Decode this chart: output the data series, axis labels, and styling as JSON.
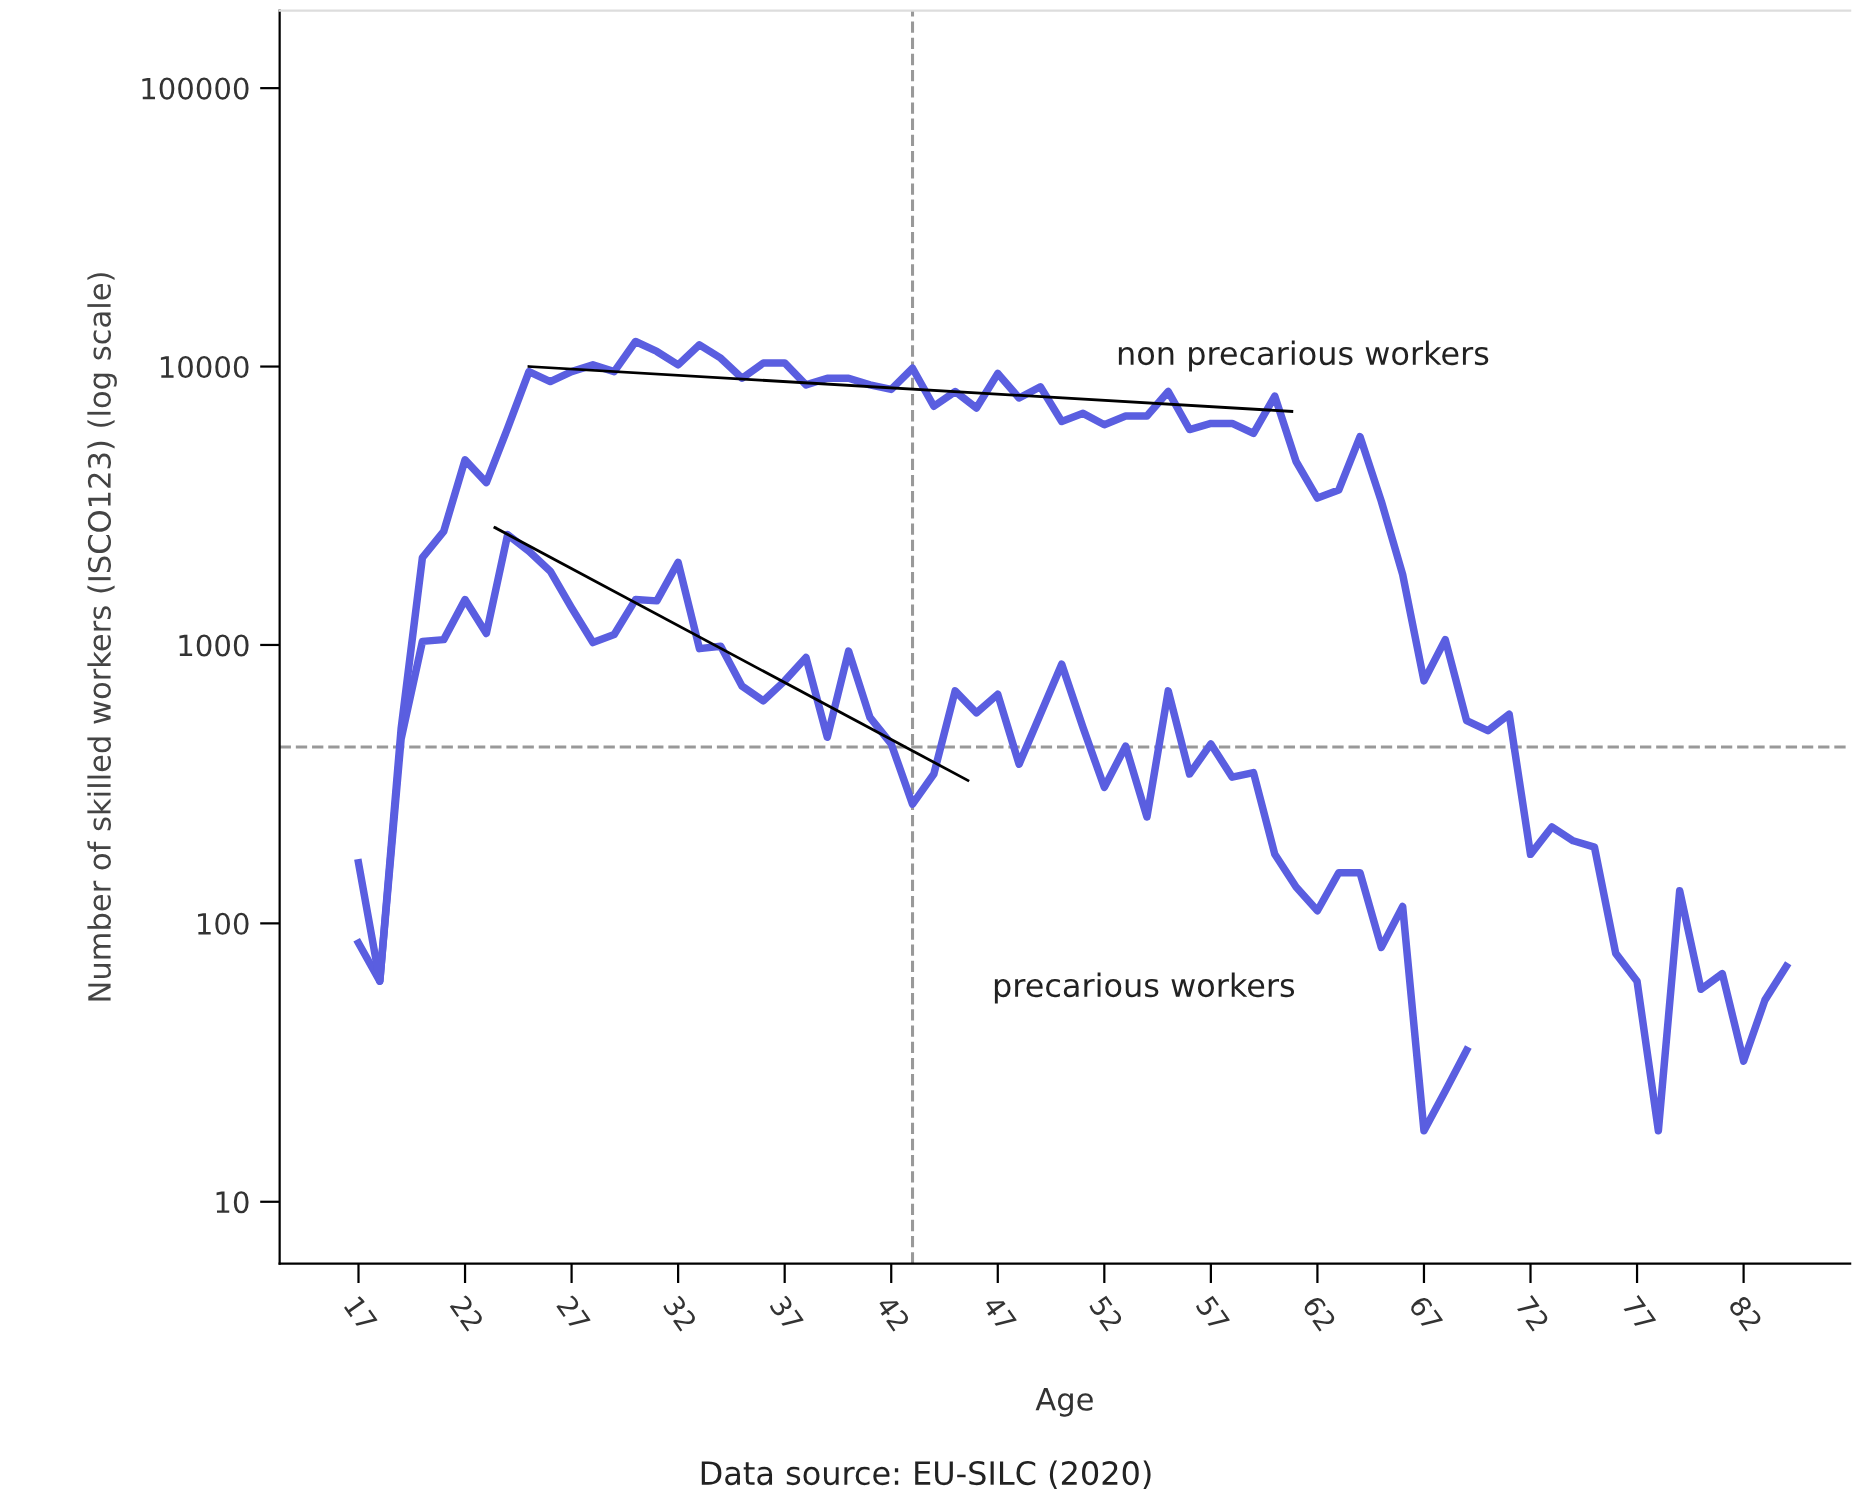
{
  "chart_data": {
    "type": "line",
    "xlabel": "Age",
    "ylabel": "Number of skilled workers (ISCO123) (log scale)",
    "log": "y",
    "xlim": [
      13.3,
      87
    ],
    "ylim": [
      6,
      190000
    ],
    "xticks": [
      17,
      22,
      27,
      32,
      37,
      42,
      47,
      52,
      57,
      62,
      67,
      72,
      77,
      82
    ],
    "yticks": [
      10,
      100,
      1000,
      10000,
      100000
    ],
    "grid": false,
    "legend": false,
    "marker": "none",
    "line_style": "solid",
    "series": [
      {
        "color": "#5a5ee0",
        "x": [
          17,
          18,
          19,
          20,
          21,
          22,
          23,
          24,
          25,
          26,
          27,
          28,
          29,
          30,
          31,
          32,
          33,
          34,
          35,
          36,
          37,
          38,
          39,
          40,
          41,
          42,
          43,
          44,
          45,
          46,
          47,
          48,
          49,
          50,
          51,
          52,
          53,
          54,
          55,
          56,
          57,
          58,
          59,
          60,
          61,
          62,
          63,
          64,
          65,
          66,
          67,
          68,
          69,
          70,
          71,
          72,
          73,
          74,
          75,
          76,
          77,
          78,
          79,
          80,
          81,
          82,
          83,
          84
        ],
        "values": [
          85,
          62,
          500,
          2060,
          2560,
          4620,
          3830,
          6010,
          9590,
          8830,
          9590,
          10140,
          9590,
          12300,
          11330,
          10140,
          11970,
          10720,
          9080,
          10300,
          10300,
          8590,
          9080,
          9080,
          8590,
          8280,
          9860,
          7200,
          8130,
          7100,
          9440,
          7710,
          8460,
          6350,
          6790,
          6180,
          6640,
          6640,
          8130,
          5940,
          6250,
          6250,
          5750,
          7830,
          4560,
          3370,
          3600,
          5600,
          3280,
          1790,
          743,
          1045,
          535,
          492,
          564,
          177,
          222,
          198,
          188,
          78,
          62,
          18,
          131,
          58,
          66,
          32,
          53,
          70
        ]
      },
      {
        "color": "#5a5ee0",
        "x": [
          17,
          18,
          19,
          20,
          21,
          22,
          23,
          24,
          25,
          26,
          27,
          28,
          29,
          30,
          31,
          32,
          33,
          34,
          35,
          36,
          37,
          38,
          39,
          40,
          41,
          42,
          43,
          44,
          45,
          46,
          47,
          48,
          49,
          50,
          51,
          52,
          53,
          54,
          55,
          56,
          57,
          58,
          59,
          60,
          61,
          62,
          63,
          64,
          65,
          66,
          67,
          68,
          69
        ],
        "values": [
          165,
          62,
          460,
          1030,
          1045,
          1455,
          1100,
          2490,
          2170,
          1840,
          1360,
          1020,
          1090,
          1455,
          1440,
          1980,
          970,
          990,
          711,
          630,
          743,
          902,
          466,
          951,
          549,
          441,
          268,
          344,
          684,
          570,
          665,
          373,
          564,
          853,
          505,
          308,
          433,
          241,
          684,
          344,
          441,
          335,
          348,
          177,
          135,
          111,
          152,
          152,
          82,
          115,
          18,
          25,
          35
        ]
      },
      {
        "type": "line",
        "color": "#000000",
        "x": [
          25,
          60.8
        ],
        "values": [
          10000,
          6900
        ]
      },
      {
        "type": "line",
        "color": "#000000",
        "x": [
          23.4,
          45.6
        ],
        "values": [
          2640,
          326
        ]
      }
    ],
    "ref_lines": [
      {
        "axis": "x",
        "value": 43,
        "color": "#999999",
        "line_style": "dashed"
      },
      {
        "axis": "y",
        "value": 430,
        "color": "#999999",
        "line_style": "dashed"
      }
    ],
    "annotations": [
      "non precarious workers",
      "precarious workers",
      "Data source: EU-SILC (2020)"
    ]
  }
}
